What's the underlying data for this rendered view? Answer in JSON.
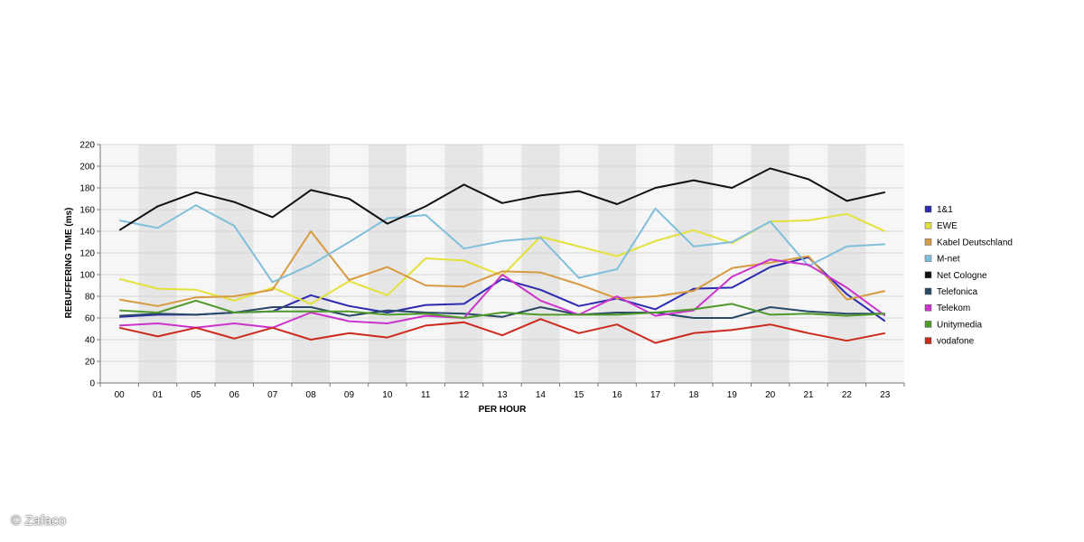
{
  "watermark": "© Zafaco",
  "chart_data": {
    "type": "line",
    "title": "",
    "xlabel": "PER HOUR",
    "ylabel": "REBUFFERING TIME (ms)",
    "ylim": [
      0,
      220
    ],
    "yticks": [
      0,
      20,
      40,
      60,
      80,
      100,
      120,
      140,
      160,
      180,
      200,
      220
    ],
    "grid": true,
    "legend_position": "right",
    "categories": [
      "00",
      "01",
      "05",
      "06",
      "07",
      "08",
      "09",
      "10",
      "11",
      "12",
      "13",
      "14",
      "15",
      "16",
      "17",
      "18",
      "19",
      "20",
      "21",
      "22",
      "23"
    ],
    "series": [
      {
        "name": "1&1",
        "color": "#2b2bb0",
        "values": [
          61,
          63,
          63,
          65,
          66,
          81,
          71,
          65,
          72,
          73,
          96,
          86,
          71,
          78,
          68,
          87,
          88,
          107,
          116,
          82,
          57
        ]
      },
      {
        "name": "EWE",
        "color": "#e2e23a",
        "values": [
          96,
          87,
          86,
          76,
          88,
          73,
          94,
          81,
          115,
          113,
          99,
          135,
          126,
          117,
          131,
          141,
          129,
          149,
          150,
          156,
          140
        ]
      },
      {
        "name": "Kabel Deutschland",
        "color": "#d89a40",
        "values": [
          77,
          71,
          79,
          80,
          86,
          140,
          95,
          107,
          90,
          89,
          103,
          102,
          91,
          78,
          80,
          85,
          106,
          111,
          117,
          77,
          85
        ]
      },
      {
        "name": "M-net",
        "color": "#80bfdc",
        "values": [
          150,
          143,
          164,
          145,
          93,
          109,
          130,
          152,
          155,
          124,
          131,
          134,
          97,
          105,
          161,
          126,
          130,
          149,
          108,
          126,
          128
        ]
      },
      {
        "name": "Net Cologne",
        "color": "#111111",
        "values": [
          141,
          163,
          176,
          167,
          153,
          178,
          170,
          147,
          163,
          183,
          166,
          173,
          177,
          165,
          180,
          187,
          180,
          198,
          188,
          168,
          176
        ]
      },
      {
        "name": "Telefonica",
        "color": "#2a4a68",
        "values": [
          62,
          64,
          63,
          65,
          70,
          70,
          62,
          67,
          65,
          64,
          61,
          70,
          63,
          65,
          65,
          60,
          60,
          70,
          66,
          64,
          64
        ]
      },
      {
        "name": "Telekom",
        "color": "#cc33cc",
        "values": [
          53,
          55,
          51,
          55,
          51,
          65,
          57,
          55,
          62,
          60,
          100,
          76,
          63,
          80,
          62,
          67,
          98,
          114,
          109,
          88,
          62
        ]
      },
      {
        "name": "Unitymedia",
        "color": "#4f9a2a",
        "values": [
          67,
          65,
          76,
          65,
          66,
          66,
          66,
          63,
          64,
          60,
          65,
          63,
          63,
          63,
          65,
          68,
          73,
          63,
          64,
          62,
          64
        ]
      },
      {
        "name": "vodafone",
        "color": "#cc2a1e",
        "values": [
          51,
          43,
          51,
          41,
          51,
          40,
          46,
          42,
          53,
          56,
          44,
          59,
          46,
          54,
          37,
          46,
          49,
          54,
          46,
          39,
          46
        ]
      }
    ]
  }
}
